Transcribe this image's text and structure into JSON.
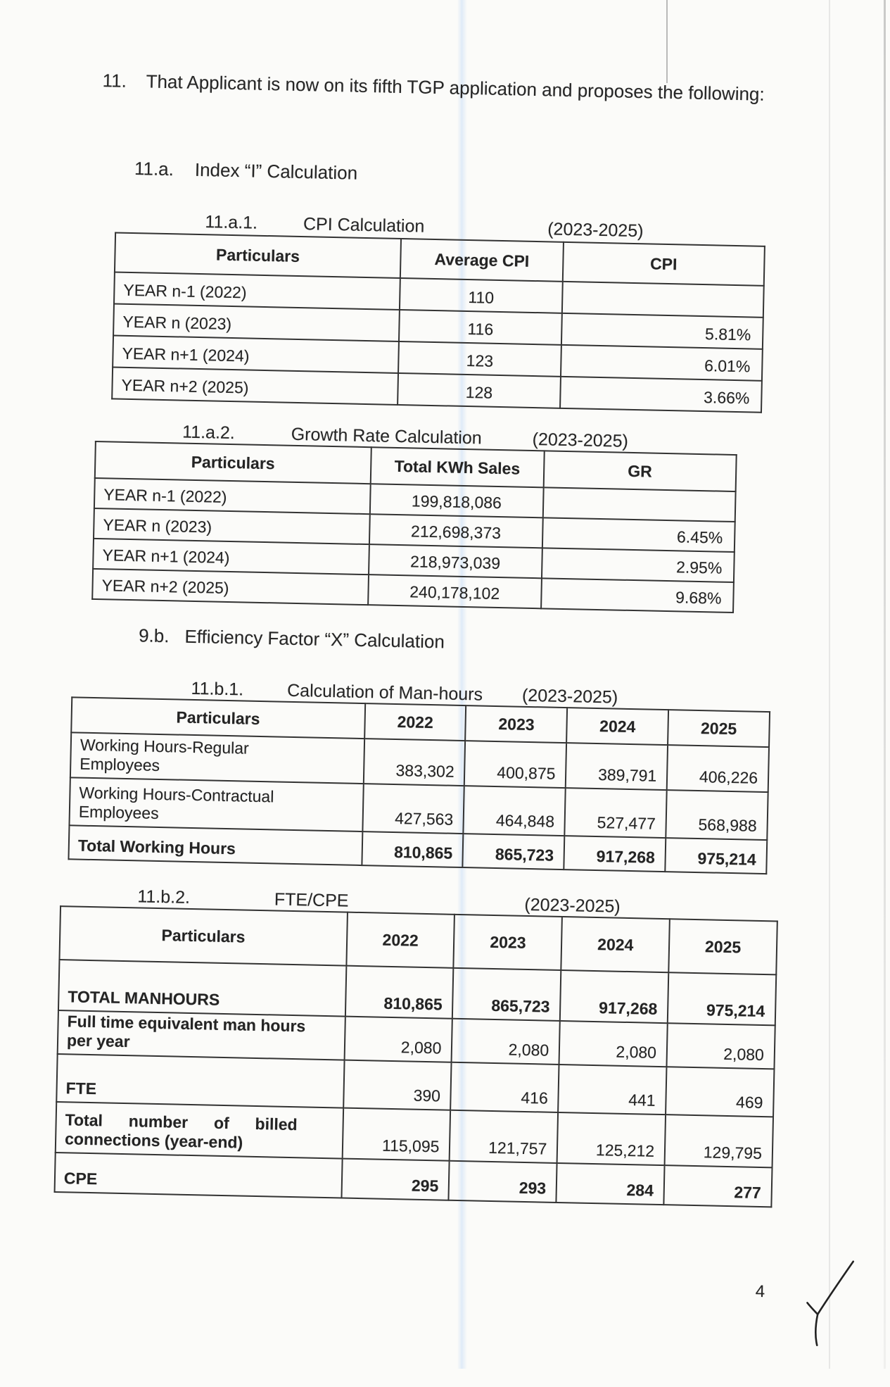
{
  "paragraph": {
    "number": "11.",
    "text": "That Applicant is now on its fifth TGP application and proposes the following:"
  },
  "sections": {
    "index_i": {
      "number": "11.a.",
      "title": "Index “I” Calculation"
    },
    "efficiency": {
      "number": "9.b.",
      "title": "Efficiency Factor “X” Calculation"
    }
  },
  "tables": {
    "cpi": {
      "number": "11.a.1.",
      "title": "CPI Calculation",
      "period": "(2023-2025)",
      "headers": [
        "Particulars",
        "Average CPI",
        "CPI"
      ],
      "rows": [
        [
          "YEAR n-1 (2022)",
          "110",
          ""
        ],
        [
          "YEAR n (2023)",
          "116",
          "5.81%"
        ],
        [
          "YEAR n+1 (2024)",
          "123",
          "6.01%"
        ],
        [
          "YEAR n+2 (2025)",
          "128",
          "3.66%"
        ]
      ]
    },
    "growth": {
      "number": "11.a.2.",
      "title": "Growth Rate Calculation",
      "period": "(2023-2025)",
      "headers": [
        "Particulars",
        "Total KWh Sales",
        "GR"
      ],
      "rows": [
        [
          "YEAR n-1 (2022)",
          "199,818,086",
          ""
        ],
        [
          "YEAR n (2023)",
          "212,698,373",
          "6.45%"
        ],
        [
          "YEAR n+1 (2024)",
          "218,973,039",
          "2.95%"
        ],
        [
          "YEAR n+2 (2025)",
          "240,178,102",
          "9.68%"
        ]
      ]
    },
    "manhours": {
      "number": "11.b.1.",
      "title": "Calculation of Man-hours",
      "period": "(2023-2025)",
      "headers": [
        "Particulars",
        "2022",
        "2023",
        "2024",
        "2025"
      ],
      "rows": [
        [
          "Working Hours-Regular Employees",
          "383,302",
          "400,875",
          "389,791",
          "406,226"
        ],
        [
          "Working Hours-Contractual Employees",
          "427,563",
          "464,848",
          "527,477",
          "568,988"
        ],
        [
          "Total Working Hours",
          "810,865",
          "865,723",
          "917,268",
          "975,214"
        ]
      ]
    },
    "fte_cpe": {
      "number": "11.b.2.",
      "title": "FTE/CPE",
      "period": "(2023-2025)",
      "headers": [
        "Particulars",
        "2022",
        "2023",
        "2024",
        "2025"
      ],
      "rows": [
        [
          "TOTAL MANHOURS",
          "810,865",
          "865,723",
          "917,268",
          "975,214"
        ],
        [
          "Full time equivalent man hours per year",
          "2,080",
          "2,080",
          "2,080",
          "2,080"
        ],
        [
          "FTE",
          "390",
          "416",
          "441",
          "469"
        ],
        [
          "Total number of billed connections (year-end)",
          "115,095",
          "121,757",
          "125,212",
          "129,795"
        ],
        [
          "CPE",
          "295",
          "293",
          "284",
          "277"
        ]
      ]
    }
  },
  "footer": {
    "page_number": "4"
  }
}
